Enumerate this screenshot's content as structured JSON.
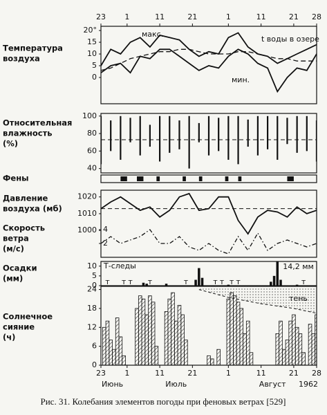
{
  "caption": "Рис. 31. Колебания элементов погоды при феновых ветрах [529]",
  "chart_data": [
    {
      "type": "line",
      "label": [
        "Температура",
        "воздуха"
      ],
      "x": [
        "1962-06-23",
        "1962-06-26",
        "1962-06-29",
        "1962-07-02",
        "1962-07-05",
        "1962-07-08",
        "1962-07-11",
        "1962-07-14",
        "1962-07-17",
        "1962-07-20",
        "1962-07-23",
        "1962-07-26",
        "1962-07-29",
        "1962-08-01",
        "1962-08-04",
        "1962-08-07",
        "1962-08-10",
        "1962-08-13",
        "1962-08-16",
        "1962-08-19",
        "1962-08-22",
        "1962-08-25",
        "1962-08-28"
      ],
      "xlim": [
        "1962-06-23",
        "1962-08-28"
      ],
      "xticks": [
        {
          "value": "1962-06-23",
          "label": "23"
        },
        {
          "value": "1962-07-01",
          "label": "1"
        },
        {
          "value": "1962-07-11",
          "label": "11"
        },
        {
          "value": "1962-07-21",
          "label": "21"
        },
        {
          "value": "1962-08-01",
          "label": "1"
        },
        {
          "value": "1962-08-11",
          "label": "11"
        },
        {
          "value": "1962-08-21",
          "label": "21"
        },
        {
          "value": "1962-08-28",
          "label": "28"
        }
      ],
      "ylim": [
        -11.2,
        21.8
      ],
      "yticks": [
        {
          "value": 20,
          "label": "20°"
        },
        15,
        10,
        5,
        0
      ],
      "series": [
        {
          "name": "макс.",
          "color": "#111",
          "values": [
            5,
            12,
            10,
            15,
            17,
            13,
            18,
            17,
            16,
            12,
            9,
            11,
            10,
            17,
            19,
            13,
            10,
            9,
            6,
            8,
            10,
            12,
            14
          ]
        },
        {
          "name": "мин.",
          "color": "#111",
          "values": [
            2,
            5,
            6,
            2,
            9,
            8,
            12,
            12,
            9,
            6,
            3,
            5,
            4,
            9,
            12,
            10,
            6,
            4,
            -6,
            0,
            4,
            3,
            10
          ]
        },
        {
          "name": "t воды в озере",
          "color": "#111",
          "dash": true,
          "values": [
            3,
            4,
            6,
            8,
            9,
            10,
            11,
            11,
            12,
            12,
            11,
            10,
            10,
            10,
            11,
            11,
            10,
            9,
            8,
            8,
            7,
            7,
            7
          ]
        }
      ]
    },
    {
      "type": "range-bar",
      "label": [
        "Относительная",
        "влажность",
        "(%)"
      ],
      "x": [
        "1962-06-23",
        "1962-06-26",
        "1962-06-29",
        "1962-07-02",
        "1962-07-05",
        "1962-07-08",
        "1962-07-11",
        "1962-07-14",
        "1962-07-17",
        "1962-07-20",
        "1962-07-23",
        "1962-07-26",
        "1962-07-29",
        "1962-08-01",
        "1962-08-04",
        "1962-08-07",
        "1962-08-10",
        "1962-08-13",
        "1962-08-16",
        "1962-08-19",
        "1962-08-22",
        "1962-08-25",
        "1962-08-28"
      ],
      "xlim": [
        "1962-06-23",
        "1962-08-28"
      ],
      "ylim": [
        35,
        103
      ],
      "yticks": [
        100,
        80,
        60,
        40
      ],
      "mean": 73,
      "color": "#111",
      "high": [
        100,
        95,
        100,
        98,
        100,
        90,
        100,
        100,
        95,
        100,
        92,
        100,
        98,
        100,
        100,
        96,
        100,
        100,
        100,
        98,
        100,
        100,
        95
      ],
      "low": [
        45,
        60,
        50,
        70,
        55,
        65,
        48,
        58,
        62,
        40,
        70,
        55,
        60,
        50,
        45,
        65,
        55,
        62,
        50,
        68,
        58,
        60,
        48
      ]
    },
    {
      "type": "periods",
      "label": [
        "Фены"
      ],
      "xlim": [
        "1962-06-23",
        "1962-08-28"
      ],
      "color": "#111",
      "periods": [
        [
          "1962-06-29",
          "1962-07-01"
        ],
        [
          "1962-07-04",
          "1962-07-06"
        ],
        [
          "1962-07-10",
          "1962-07-11"
        ],
        [
          "1962-07-18",
          "1962-07-19"
        ],
        [
          "1962-07-23",
          "1962-07-24"
        ],
        [
          "1962-07-31",
          "1962-08-01"
        ],
        [
          "1962-08-04",
          "1962-08-05"
        ],
        [
          "1962-08-19",
          "1962-08-21"
        ]
      ]
    },
    {
      "type": "line",
      "label": [
        "Давление",
        "воздуха (мб)"
      ],
      "x": [
        "1962-06-23",
        "1962-06-26",
        "1962-06-29",
        "1962-07-02",
        "1962-07-05",
        "1962-07-08",
        "1962-07-11",
        "1962-07-14",
        "1962-07-17",
        "1962-07-20",
        "1962-07-23",
        "1962-07-26",
        "1962-07-29",
        "1962-08-01",
        "1962-08-04",
        "1962-08-07",
        "1962-08-10",
        "1962-08-13",
        "1962-08-16",
        "1962-08-19",
        "1962-08-22",
        "1962-08-25",
        "1962-08-28"
      ],
      "xlim": [
        "1962-06-23",
        "1962-08-28"
      ],
      "ylim": [
        984,
        1024
      ],
      "yticks": [
        1020,
        1010,
        1000
      ],
      "mean": 1013,
      "series": [
        {
          "color": "#111",
          "values": [
            1013,
            1017,
            1020,
            1016,
            1012,
            1014,
            1008,
            1012,
            1020,
            1022,
            1012,
            1013,
            1020,
            1020,
            1006,
            998,
            1008,
            1012,
            1011,
            1008,
            1014,
            1010,
            1012
          ]
        }
      ]
    },
    {
      "type": "line",
      "label": [
        "Скорость",
        "ветра",
        "(м/с)"
      ],
      "x": [
        "1962-06-23",
        "1962-06-26",
        "1962-06-29",
        "1962-07-02",
        "1962-07-05",
        "1962-07-08",
        "1962-07-11",
        "1962-07-14",
        "1962-07-17",
        "1962-07-20",
        "1962-07-23",
        "1962-07-26",
        "1962-07-29",
        "1962-08-01",
        "1962-08-04",
        "1962-08-07",
        "1962-08-10",
        "1962-08-13",
        "1962-08-16",
        "1962-08-19",
        "1962-08-22",
        "1962-08-25",
        "1962-08-28"
      ],
      "xlim": [
        "1962-06-23",
        "1962-08-28"
      ],
      "ylim": [
        0,
        9.7
      ],
      "yticks": [
        4,
        2
      ],
      "inner_ticks": true,
      "series": [
        {
          "color": "#111",
          "dash_dot": true,
          "values": [
            2,
            3,
            2,
            2.5,
            3,
            4,
            2,
            2,
            3,
            1.5,
            1,
            2,
            1,
            0.5,
            3,
            1,
            3.5,
            1,
            2,
            2.5,
            2,
            1.5,
            2
          ]
        }
      ]
    },
    {
      "type": "bar",
      "label": [
        "Осадки",
        "(мм)"
      ],
      "xlim": [
        "1962-06-23",
        "1962-08-28"
      ],
      "ylim": [
        0,
        12.4
      ],
      "yticks": [
        10,
        5,
        0
      ],
      "color": "#111",
      "legend_text": "Т-следы",
      "trace_label": "т",
      "trace_x": [
        "1962-06-25",
        "1962-06-30",
        "1962-07-02",
        "1962-07-08",
        "1962-07-19",
        "1962-07-28",
        "1962-07-30",
        "1962-08-02",
        "1962-08-04",
        "1962-08-24"
      ],
      "x": [
        "1962-07-06",
        "1962-07-07",
        "1962-07-13",
        "1962-07-22",
        "1962-07-23",
        "1962-07-24",
        "1962-08-01",
        "1962-08-14",
        "1962-08-15",
        "1962-08-16",
        "1962-08-17",
        "1962-08-22"
      ],
      "values": [
        1.5,
        1,
        1,
        3,
        9,
        4,
        0.5,
        2,
        5,
        14.2,
        3,
        0.5
      ],
      "value_labels": [
        null,
        null,
        null,
        null,
        null,
        null,
        null,
        null,
        null,
        "14,2 мм",
        null,
        null
      ]
    },
    {
      "type": "bar",
      "label": [
        "Солнечное",
        "сияние",
        "(ч)"
      ],
      "hatch": true,
      "color": "#111",
      "xlim": [
        "1962-06-23",
        "1962-08-28"
      ],
      "ylim": [
        0,
        25
      ],
      "yticks": [
        24,
        18,
        12,
        6,
        0
      ],
      "xticks": [
        {
          "value": "1962-06-23",
          "label": "23"
        },
        {
          "value": "1962-07-01",
          "label": "1"
        },
        {
          "value": "1962-07-11",
          "label": "11"
        },
        {
          "value": "1962-07-21",
          "label": "21"
        },
        {
          "value": "1962-08-01",
          "label": "1"
        },
        {
          "value": "1962-08-11",
          "label": "11"
        },
        {
          "value": "1962-08-21",
          "label": "21"
        },
        {
          "value": "1962-08-28",
          "label": "28"
        }
      ],
      "months": [
        {
          "value": "1962-06",
          "label": "Июнь"
        },
        {
          "value": "1962-07",
          "label": "Июль"
        },
        {
          "value": "1962-08",
          "label": "Август"
        }
      ],
      "year": "1962",
      "x": [
        "1962-06-23",
        "1962-06-24",
        "1962-06-25",
        "1962-06-26",
        "1962-06-27",
        "1962-06-28",
        "1962-06-29",
        "1962-06-30",
        "1962-07-01",
        "1962-07-02",
        "1962-07-03",
        "1962-07-04",
        "1962-07-05",
        "1962-07-06",
        "1962-07-07",
        "1962-07-08",
        "1962-07-09",
        "1962-07-10",
        "1962-07-11",
        "1962-07-12",
        "1962-07-13",
        "1962-07-14",
        "1962-07-15",
        "1962-07-16",
        "1962-07-17",
        "1962-07-18",
        "1962-07-19",
        "1962-07-20",
        "1962-07-21",
        "1962-07-22",
        "1962-07-23",
        "1962-07-24",
        "1962-07-25",
        "1962-07-26",
        "1962-07-27",
        "1962-07-28",
        "1962-07-29",
        "1962-07-30",
        "1962-07-31",
        "1962-08-01",
        "1962-08-02",
        "1962-08-03",
        "1962-08-04",
        "1962-08-05",
        "1962-08-06",
        "1962-08-07",
        "1962-08-08",
        "1962-08-09",
        "1962-08-10",
        "1962-08-11",
        "1962-08-12",
        "1962-08-13",
        "1962-08-14",
        "1962-08-15",
        "1962-08-16",
        "1962-08-17",
        "1962-08-18",
        "1962-08-19",
        "1962-08-20",
        "1962-08-21",
        "1962-08-22",
        "1962-08-23",
        "1962-08-24",
        "1962-08-25",
        "1962-08-26",
        "1962-08-27",
        "1962-08-28"
      ],
      "values": [
        0,
        12,
        14,
        8,
        5,
        15,
        9,
        3,
        0,
        0,
        0,
        18,
        22,
        21,
        16,
        22,
        20,
        6,
        0,
        0,
        17,
        21,
        23,
        14,
        19,
        16,
        8,
        0,
        0,
        0,
        0,
        0,
        0,
        3,
        2,
        0,
        5,
        0,
        0,
        21,
        23,
        22,
        20,
        18,
        10,
        14,
        4,
        0,
        0,
        0,
        0,
        0,
        0,
        0,
        10,
        14,
        5,
        8,
        14,
        16,
        12,
        10,
        4,
        0,
        13,
        10,
        16
      ],
      "shade": {
        "label": "тень",
        "x": [
          "1962-07-23",
          "1962-08-01",
          "1962-08-11",
          "1962-08-21",
          "1962-08-28"
        ],
        "values": [
          24,
          21.5,
          19.5,
          18,
          16.5
        ]
      }
    }
  ]
}
